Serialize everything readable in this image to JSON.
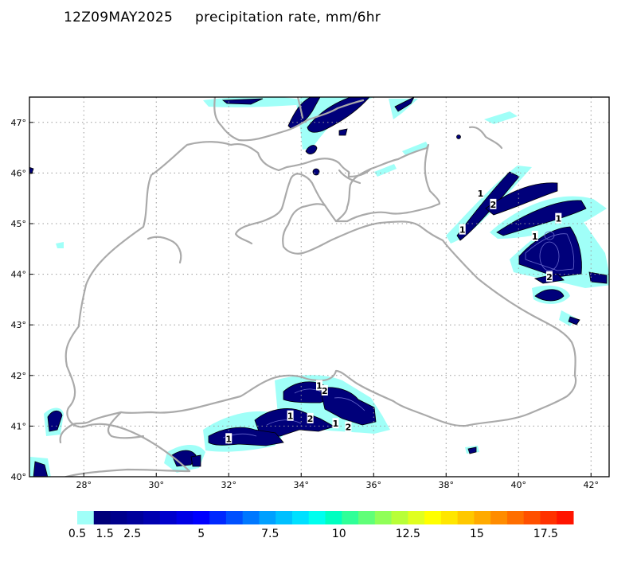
{
  "header": {
    "date": "12Z09MAY2025",
    "title": "precipitation rate, mm/6hr"
  },
  "map": {
    "lon_range": [
      26.5,
      42.5
    ],
    "lat_range": [
      40,
      47.5
    ],
    "x_ticks": [
      {
        "v": 28,
        "label": "28°"
      },
      {
        "v": 30,
        "label": "30°"
      },
      {
        "v": 32,
        "label": "32°"
      },
      {
        "v": 34,
        "label": "34°"
      },
      {
        "v": 36,
        "label": "36°"
      },
      {
        "v": 38,
        "label": "38°"
      },
      {
        "v": 40,
        "label": "40°"
      },
      {
        "v": 42,
        "label": "42°"
      }
    ],
    "y_ticks": [
      {
        "v": 40,
        "label": "40°"
      },
      {
        "v": 41,
        "label": "41°"
      },
      {
        "v": 42,
        "label": "42°"
      },
      {
        "v": 43,
        "label": "43°"
      },
      {
        "v": 44,
        "label": "44°"
      },
      {
        "v": 45,
        "label": "45°"
      },
      {
        "v": 46,
        "label": "46°"
      },
      {
        "v": 47,
        "label": "47°"
      }
    ],
    "grid": true,
    "coast_color": "#aaaaaa",
    "contour_labels": [
      {
        "lon": 38.95,
        "lat": 45.6,
        "text": "1"
      },
      {
        "lon": 39.3,
        "lat": 45.38,
        "text": "2"
      },
      {
        "lon": 38.45,
        "lat": 44.88,
        "text": "1"
      },
      {
        "lon": 41.1,
        "lat": 45.1,
        "text": "1"
      },
      {
        "lon": 40.45,
        "lat": 44.75,
        "text": "1"
      },
      {
        "lon": 40.85,
        "lat": 43.95,
        "text": "2"
      },
      {
        "lon": 34.5,
        "lat": 41.8,
        "text": "1"
      },
      {
        "lon": 34.65,
        "lat": 41.7,
        "text": "2"
      },
      {
        "lon": 33.7,
        "lat": 41.2,
        "text": "1"
      },
      {
        "lon": 34.25,
        "lat": 41.15,
        "text": "2"
      },
      {
        "lon": 34.95,
        "lat": 41.05,
        "text": "1"
      },
      {
        "lon": 35.3,
        "lat": 40.98,
        "text": "2"
      },
      {
        "lon": 32.0,
        "lat": 40.75,
        "text": "1"
      }
    ]
  },
  "colorbar": {
    "colors": [
      "#a0fff8",
      "#00007a",
      "#00008c",
      "#00009c",
      "#0000b0",
      "#0000cc",
      "#0000e6",
      "#0000ff",
      "#0028ff",
      "#0050ff",
      "#0078ff",
      "#00a0ff",
      "#00c0ff",
      "#00e0ff",
      "#00ffee",
      "#00ffc0",
      "#30ff98",
      "#60ff78",
      "#90ff58",
      "#b8ff38",
      "#e0ff20",
      "#ffff00",
      "#ffe600",
      "#ffc800",
      "#ffaa00",
      "#ff8c00",
      "#ff6e00",
      "#ff5000",
      "#ff3200",
      "#ff1400"
    ],
    "labels": [
      {
        "v": 0.5,
        "label": "0.5"
      },
      {
        "v": 1.5,
        "label": "1.5"
      },
      {
        "v": 2.5,
        "label": "2.5"
      },
      {
        "v": 5,
        "label": "5"
      },
      {
        "v": 7.5,
        "label": "7.5"
      },
      {
        "v": 10,
        "label": "10"
      },
      {
        "v": 12.5,
        "label": "12.5"
      },
      {
        "v": 15,
        "label": "15"
      },
      {
        "v": 17.5,
        "label": "17.5"
      }
    ]
  }
}
